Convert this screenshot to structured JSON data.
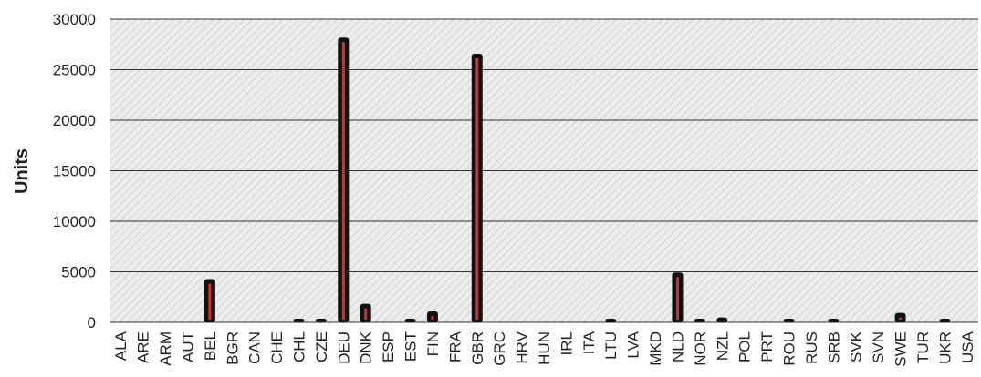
{
  "chart_data": {
    "type": "bar",
    "title": "",
    "xlabel": "",
    "ylabel": "Units",
    "ylim": [
      0,
      30000
    ],
    "yticks": [
      0,
      5000,
      10000,
      15000,
      20000,
      25000,
      30000
    ],
    "grid": true,
    "legend": "none",
    "categories": [
      "ALA",
      "ARE",
      "ARM",
      "AUT",
      "BEL",
      "BGR",
      "CAN",
      "CHE",
      "CHL",
      "CZE",
      "DEU",
      "DNK",
      "ESP",
      "EST",
      "FIN",
      "FRA",
      "GBR",
      "GRC",
      "HRV",
      "HUN",
      "IRL",
      "ITA",
      "LTU",
      "LVA",
      "MKD",
      "NLD",
      "NOR",
      "NZL",
      "POL",
      "PRT",
      "ROU",
      "RUS",
      "SRB",
      "SVK",
      "SVN",
      "SWE",
      "TUR",
      "UKR",
      "USA"
    ],
    "values": [
      0,
      0,
      0,
      0,
      4100,
      0,
      0,
      0,
      50,
      80,
      28000,
      1650,
      0,
      80,
      900,
      0,
      26400,
      0,
      0,
      0,
      0,
      0,
      80,
      0,
      0,
      4750,
      80,
      300,
      0,
      0,
      50,
      0,
      60,
      0,
      0,
      750,
      0,
      60,
      0
    ],
    "colors": {
      "bar_outline": "#111111",
      "bar_fill": "#d03030",
      "plot_bg": "#ebebeb",
      "hatch": "#d4d4d4",
      "grid": "#333333"
    }
  }
}
